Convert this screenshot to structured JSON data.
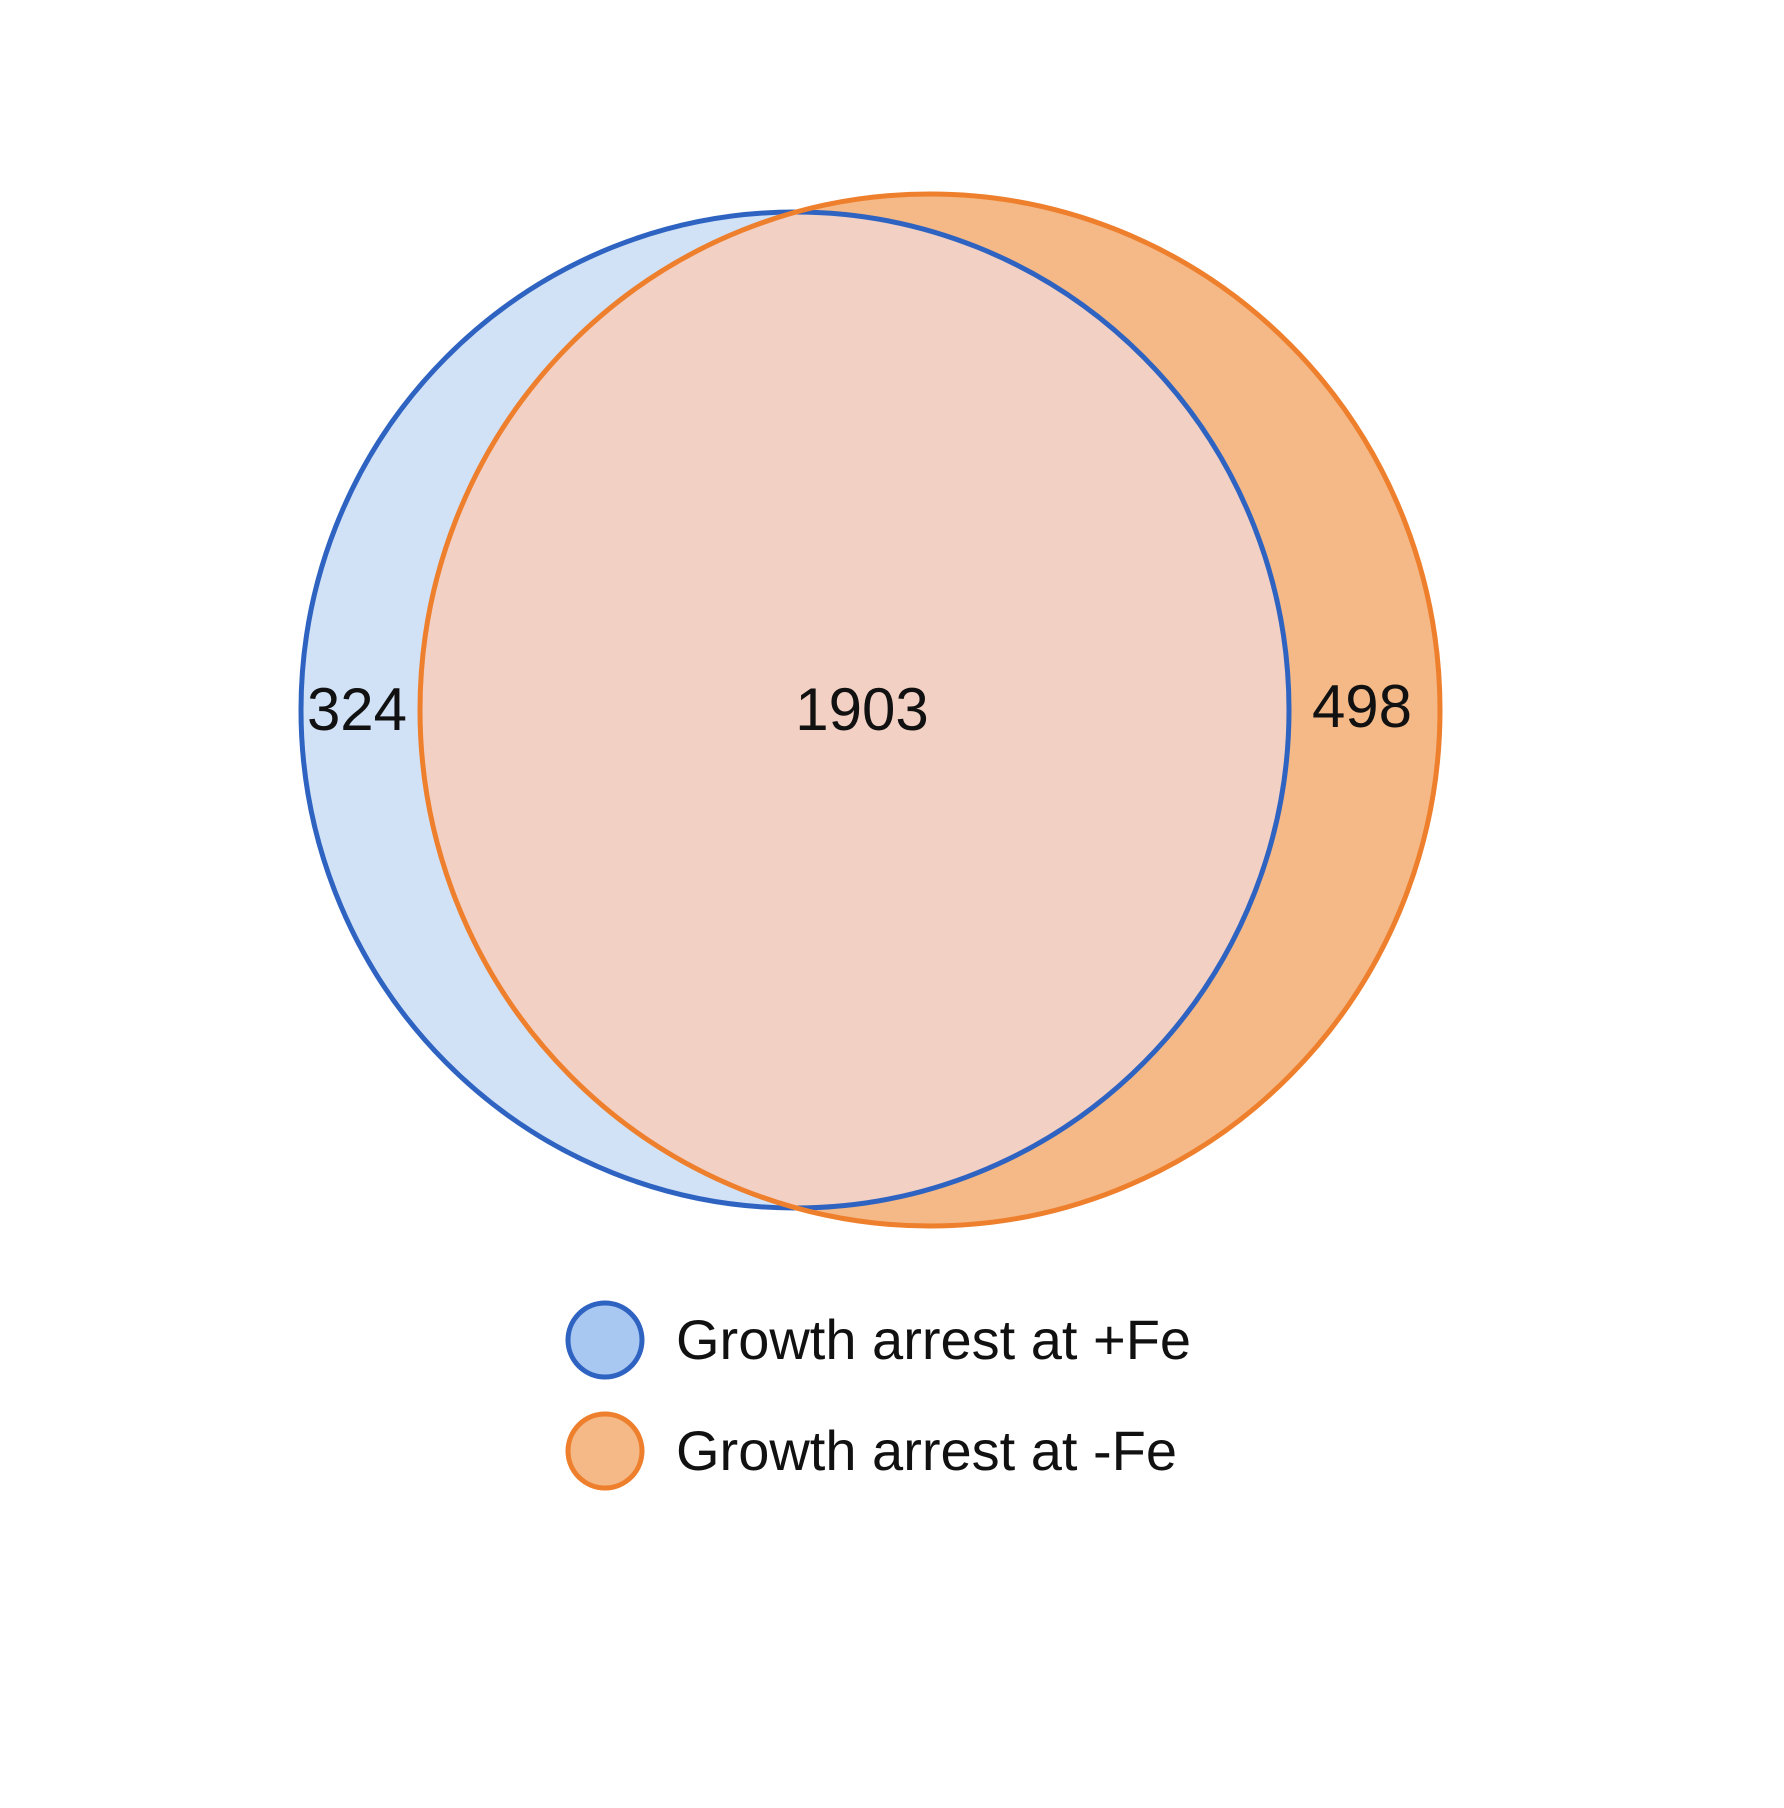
{
  "sets": [
    {
      "key": "plus_fe",
      "label": "Growth arrest at +Fe",
      "only_count": "324",
      "stroke_color": "#2f63c1",
      "fill_color": "#d1e2f7",
      "legend_fill_color": "#a8c8f2"
    },
    {
      "key": "minus_fe",
      "label": "Growth arrest at -Fe",
      "only_count": "498",
      "stroke_color": "#ee7f2d",
      "fill_color": "#f4b987",
      "legend_fill_color": "#f4b987"
    }
  ],
  "intersection": {
    "count": "1903",
    "fill_color": "#f3d0c4"
  }
}
